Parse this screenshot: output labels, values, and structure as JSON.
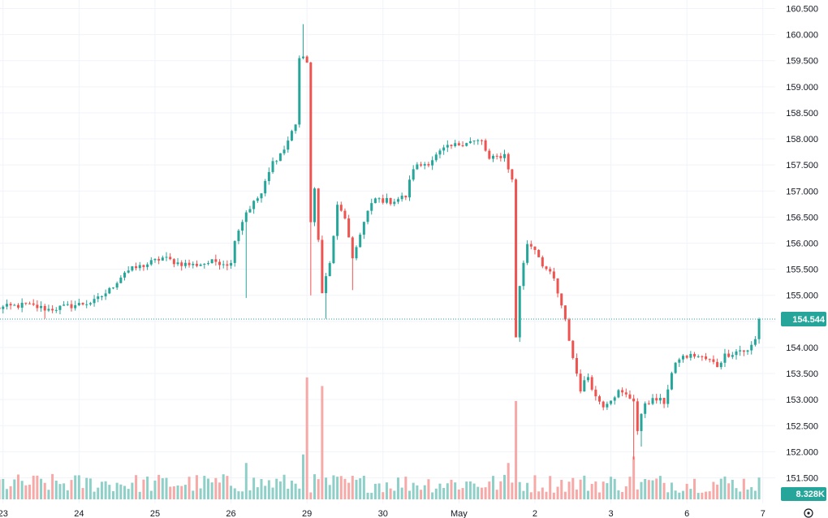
{
  "chart_data": {
    "type": "candlestick",
    "price_axis": {
      "min": 151.18,
      "max": 160.66,
      "ticks": [
        "160.500",
        "160.000",
        "159.500",
        "159.000",
        "158.500",
        "158.000",
        "157.500",
        "157.000",
        "156.500",
        "156.000",
        "155.500",
        "155.000",
        "154.500",
        "154.000",
        "153.500",
        "153.000",
        "152.500",
        "152.000",
        "151.500"
      ],
      "tick_values": [
        160.5,
        160.0,
        159.5,
        159.0,
        158.5,
        158.0,
        157.5,
        157.0,
        156.5,
        156.0,
        155.5,
        155.0,
        154.5,
        154.0,
        153.5,
        153.0,
        152.5,
        152.0,
        151.5
      ]
    },
    "time_axis": {
      "labels": [
        {
          "text": "23",
          "index": 2
        },
        {
          "text": "24",
          "index": 22
        },
        {
          "text": "25",
          "index": 42
        },
        {
          "text": "26",
          "index": 62
        },
        {
          "text": "29",
          "index": 82
        },
        {
          "text": "30",
          "index": 102
        },
        {
          "text": "May",
          "index": 122
        },
        {
          "text": "2",
          "index": 142
        },
        {
          "text": "3",
          "index": 162
        },
        {
          "text": "6",
          "index": 182
        },
        {
          "text": "7",
          "index": 202
        }
      ],
      "bar_count": 202
    },
    "last_price": {
      "value": 154.544,
      "label": "154.544"
    },
    "volume": {
      "label": "8.328K",
      "max": 60
    },
    "colors": {
      "up": "#26a69a",
      "down": "#ef5350",
      "vol_up": "#8ecfc8",
      "vol_down": "#f7a9a7",
      "grid": "#f0f3fa",
      "text": "#131722",
      "price_line": "#26a69a"
    },
    "waypoints": [
      [
        0,
        154.75
      ],
      [
        8,
        154.82
      ],
      [
        14,
        154.73
      ],
      [
        20,
        154.8
      ],
      [
        26,
        154.88
      ],
      [
        30,
        155.1
      ],
      [
        34,
        155.45
      ],
      [
        40,
        155.6
      ],
      [
        44,
        155.72
      ],
      [
        48,
        155.62
      ],
      [
        52,
        155.58
      ],
      [
        58,
        155.65
      ],
      [
        62,
        155.6
      ],
      [
        63,
        156.1
      ],
      [
        66,
        156.6
      ],
      [
        70,
        156.95
      ],
      [
        73,
        157.55
      ],
      [
        76,
        157.8
      ],
      [
        79,
        158.3
      ],
      [
        80,
        159.55
      ],
      [
        82,
        159.5
      ],
      [
        83,
        156.4
      ],
      [
        84,
        157
      ],
      [
        86,
        155.1
      ],
      [
        88,
        155.6
      ],
      [
        90,
        156.7
      ],
      [
        92,
        156.5
      ],
      [
        94,
        155.65
      ],
      [
        96,
        156.2
      ],
      [
        98,
        156.6
      ],
      [
        100,
        156.85
      ],
      [
        104,
        156.8
      ],
      [
        108,
        156.9
      ],
      [
        110,
        157.45
      ],
      [
        114,
        157.55
      ],
      [
        118,
        157.8
      ],
      [
        124,
        157.95
      ],
      [
        128,
        157.95
      ],
      [
        130,
        157.6
      ],
      [
        134,
        157.7
      ],
      [
        136,
        157.2
      ],
      [
        137,
        154.2
      ],
      [
        138,
        155.2
      ],
      [
        140,
        156
      ],
      [
        142,
        155.9
      ],
      [
        144,
        155.6
      ],
      [
        147,
        155.3
      ],
      [
        150,
        154.5
      ],
      [
        152,
        153.8
      ],
      [
        154,
        153.2
      ],
      [
        156,
        153.45
      ],
      [
        158,
        153.05
      ],
      [
        160,
        152.9
      ],
      [
        164,
        153.15
      ],
      [
        168,
        153.0
      ],
      [
        169,
        152.4
      ],
      [
        171,
        152.95
      ],
      [
        174,
        153.0
      ],
      [
        176,
        152.95
      ],
      [
        178,
        153.5
      ],
      [
        180,
        153.8
      ],
      [
        184,
        153.85
      ],
      [
        188,
        153.75
      ],
      [
        190,
        153.65
      ],
      [
        192,
        153.85
      ],
      [
        196,
        153.95
      ],
      [
        198,
        153.92
      ],
      [
        200,
        154.15
      ],
      [
        201,
        154.544
      ]
    ],
    "spikes": [
      {
        "index": 81,
        "high": 160.2
      },
      {
        "index": 83,
        "low": 155.0
      },
      {
        "index": 87,
        "low": 154.55
      },
      {
        "index": 94,
        "low": 155.1
      },
      {
        "index": 66,
        "low": 154.95
      },
      {
        "index": 137,
        "low": 154.2
      },
      {
        "index": 168,
        "low": 151.85
      },
      {
        "index": 170,
        "low": 152.1
      },
      {
        "index": 13,
        "low": 154.55
      }
    ],
    "volume_spikes": [
      {
        "index": 82,
        "value": 57
      },
      {
        "index": 86,
        "value": 53
      },
      {
        "index": 137,
        "value": 46
      },
      {
        "index": 135,
        "value": 17
      },
      {
        "index": 66,
        "value": 17
      },
      {
        "index": 81,
        "value": 21
      },
      {
        "index": 168,
        "value": 20
      }
    ]
  }
}
